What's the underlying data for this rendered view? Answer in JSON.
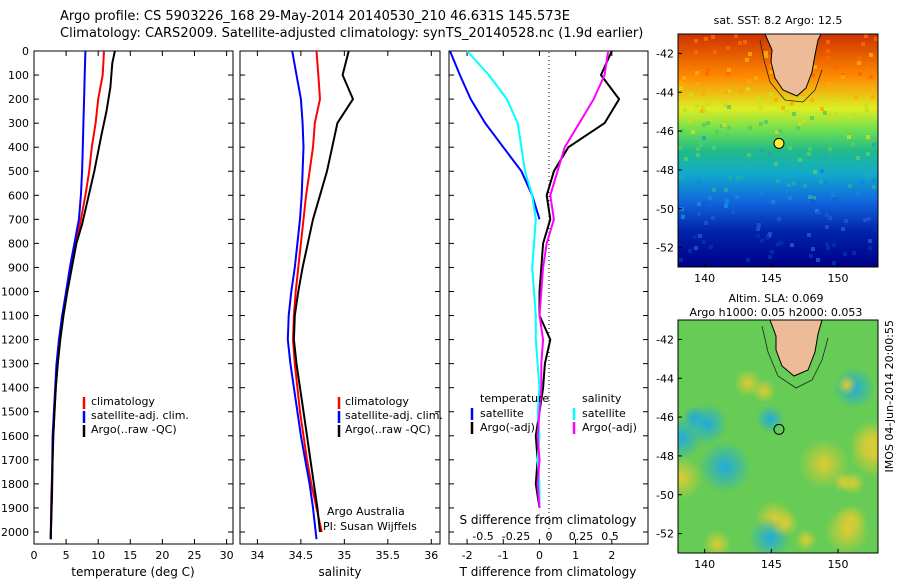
{
  "titles": {
    "line1": "Argo profile: CS 5903226_168 29-May-2014 20140530_210 46.631S 145.573E",
    "line2": "Climatology: CARS2009. Satellite-adjusted climatology: synTS_20140528.nc (1.9d earlier)"
  },
  "side_text": "IMOS 04-Jun-2014 20:00:55",
  "colors": {
    "climatology": "#ff0000",
    "satellite": "#0000ff",
    "argo": "#000000",
    "sat_diff": "#00ffff",
    "argo_diff": "#ff00ff"
  },
  "chart_data": [
    {
      "type": "line",
      "xlabel": "temperature (deg C)",
      "ylabel": "",
      "xlim": [
        0,
        31
      ],
      "ylim": [
        2050,
        0
      ],
      "xticks": [
        0,
        5,
        10,
        15,
        20,
        25,
        30
      ],
      "yticks": [
        0,
        100,
        200,
        300,
        400,
        500,
        600,
        700,
        800,
        900,
        1000,
        1100,
        1200,
        1300,
        1400,
        1500,
        1600,
        1700,
        1800,
        1900,
        2000
      ],
      "legend": [
        "climatology",
        "satellite-adj. clim.",
        "Argo(..raw -QC)"
      ],
      "series": [
        {
          "name": "climatology",
          "color": "#ff0000",
          "x": [
            10.9,
            10.7,
            10.0,
            9.6,
            9.0,
            8.6,
            8.0,
            7.3,
            6.5,
            5.8,
            5.1,
            4.4,
            3.9,
            3.6,
            3.4,
            3.2,
            3.0,
            2.9,
            2.7,
            2.6
          ],
          "y": [
            0,
            100,
            200,
            300,
            400,
            500,
            600,
            700,
            800,
            900,
            1000,
            1100,
            1200,
            1300,
            1400,
            1500,
            1600,
            1700,
            1850,
            2030
          ]
        },
        {
          "name": "satellite-adj. clim.",
          "color": "#0000ff",
          "x": [
            8.0,
            7.9,
            7.8,
            7.7,
            7.6,
            7.5,
            7.3,
            7.0,
            6.3,
            5.6,
            5.0,
            4.4,
            3.9,
            3.5,
            3.3,
            3.1,
            2.9,
            2.8,
            2.6
          ],
          "y": [
            0,
            100,
            200,
            300,
            400,
            500,
            600,
            700,
            800,
            900,
            1000,
            1100,
            1200,
            1300,
            1400,
            1500,
            1600,
            1800,
            2030
          ]
        },
        {
          "name": "Argo(..raw -QC)",
          "color": "#000000",
          "x": [
            12.6,
            12.2,
            11.9,
            11.3,
            10.5,
            9.4,
            8.1,
            7.5,
            6.6,
            5.9,
            5.2,
            4.6,
            4.1,
            3.7,
            3.4,
            3.2,
            3.0,
            2.9,
            2.8,
            2.6
          ],
          "y": [
            0,
            50,
            150,
            250,
            350,
            500,
            650,
            720,
            800,
            900,
            1000,
            1100,
            1200,
            1300,
            1400,
            1500,
            1600,
            1700,
            1850,
            2030
          ]
        }
      ]
    },
    {
      "type": "line",
      "xlabel": "salinity",
      "xlim": [
        33.8,
        36.1
      ],
      "ylim": [
        2050,
        0
      ],
      "xticks": [
        34,
        34.5,
        35,
        35.5,
        36
      ],
      "legend": [
        "climatology",
        "satellite-adj. clim.",
        "Argo(..raw -QC)"
      ],
      "annotations": [
        "Argo Australia",
        "PI: Susan Wijffels"
      ],
      "series": [
        {
          "name": "climatology",
          "color": "#ff0000",
          "x": [
            34.68,
            34.7,
            34.72,
            34.66,
            34.64,
            34.6,
            34.56,
            34.53,
            34.5,
            34.47,
            34.44,
            34.42,
            34.41,
            34.43,
            34.46,
            34.49,
            34.53,
            34.57,
            34.62,
            34.68,
            34.74
          ],
          "y": [
            0,
            100,
            200,
            300,
            400,
            500,
            600,
            700,
            800,
            900,
            1000,
            1100,
            1200,
            1300,
            1400,
            1500,
            1600,
            1700,
            1800,
            1900,
            2000
          ]
        },
        {
          "name": "satellite-adj. clim.",
          "color": "#0000ff",
          "x": [
            34.4,
            34.45,
            34.5,
            34.52,
            34.53,
            34.52,
            34.51,
            34.49,
            34.46,
            34.43,
            34.39,
            34.36,
            34.35,
            34.38,
            34.42,
            34.46,
            34.5,
            34.55,
            34.6,
            34.64,
            34.68
          ],
          "y": [
            0,
            100,
            200,
            300,
            400,
            500,
            600,
            700,
            800,
            900,
            1000,
            1100,
            1200,
            1300,
            1400,
            1500,
            1600,
            1700,
            1800,
            1900,
            2030
          ]
        },
        {
          "name": "Argo(..raw -QC)",
          "color": "#000000",
          "x": [
            35.05,
            34.98,
            35.1,
            34.92,
            34.86,
            34.8,
            34.72,
            34.64,
            34.58,
            34.52,
            34.47,
            34.43,
            34.42,
            34.45,
            34.49,
            34.53,
            34.57,
            34.61,
            34.65,
            34.69,
            34.72
          ],
          "y": [
            0,
            100,
            200,
            300,
            400,
            500,
            600,
            700,
            800,
            900,
            1000,
            1100,
            1200,
            1300,
            1400,
            1500,
            1600,
            1700,
            1800,
            1900,
            2000
          ]
        }
      ]
    },
    {
      "type": "line",
      "xlabel": "T difference from climatology",
      "xlabel_top": "S difference from climatology",
      "xlim": [
        -2.5,
        3
      ],
      "ylim": [
        2050,
        0
      ],
      "xticks": [
        -2,
        -1,
        0,
        1,
        2
      ],
      "xticks_top": [
        "-0.5",
        "-0.25",
        "0",
        "0.25",
        "0.5"
      ],
      "legend": [
        "temperature",
        "satellite",
        "Argo(-adj)",
        "salinity",
        "satellite",
        "Argo(-adj)"
      ],
      "series": [
        {
          "name": "satellite",
          "color": "#0000ff",
          "x": [
            -2.8,
            -2.2,
            -1.9,
            -1.5,
            -1.0,
            -0.5,
            -0.2,
            0.0
          ],
          "y": [
            0,
            100,
            200,
            300,
            400,
            500,
            600,
            700
          ]
        },
        {
          "name": "Argo(-adj)",
          "color": "#000000",
          "x": [
            2.0,
            1.7,
            2.2,
            1.8,
            0.8,
            0.4,
            0.2,
            0.3,
            0.1,
            0.05,
            0.0,
            0.0,
            0.3,
            0.15,
            0.1,
            0.0,
            -0.1,
            -0.05,
            -0.1,
            0.0
          ],
          "y": [
            0,
            100,
            200,
            300,
            400,
            500,
            600,
            700,
            800,
            900,
            1000,
            1100,
            1200,
            1300,
            1400,
            1500,
            1600,
            1700,
            1800,
            1900
          ]
        },
        {
          "name": "satellite",
          "color": "#00ffff",
          "x": [
            -2.0,
            -1.4,
            -0.9,
            -0.6,
            -0.5,
            -0.4,
            -0.2,
            -0.1,
            -0.15,
            -0.2,
            -0.15,
            -0.1,
            -0.1,
            -0.05,
            0.0,
            -0.05,
            0.0,
            -0.05,
            0.0,
            0.0
          ],
          "y": [
            0,
            100,
            200,
            300,
            400,
            500,
            600,
            700,
            800,
            900,
            1000,
            1100,
            1200,
            1300,
            1400,
            1500,
            1600,
            1700,
            1800,
            1900
          ]
        },
        {
          "name": "Argo(-adj)",
          "color": "#ff00ff",
          "x": [
            1.9,
            1.8,
            1.5,
            1.1,
            0.7,
            0.5,
            0.3,
            0.4,
            0.2,
            0.1,
            0.05,
            0.0,
            0.1,
            0.05,
            0.05,
            0.0,
            -0.05,
            0.0,
            -0.05,
            0.0
          ],
          "y": [
            0,
            100,
            200,
            300,
            400,
            500,
            600,
            700,
            800,
            900,
            1000,
            1100,
            1200,
            1300,
            1400,
            1500,
            1600,
            1700,
            1800,
            1900
          ]
        }
      ]
    },
    {
      "type": "heatmap",
      "title": "sat. SST: 8.2 Argo: 12.5",
      "xlim": [
        138,
        153
      ],
      "ylim": [
        -53,
        -41
      ],
      "xticks": [
        140,
        145,
        150
      ],
      "yticks": [
        -42,
        -44,
        -46,
        -48,
        -50,
        -52
      ],
      "float_position": {
        "lon": 145.573,
        "lat": -46.631
      }
    },
    {
      "type": "heatmap",
      "title": "Altim. SLA: 0.069",
      "subtitle": "Argo h1000: 0.05 h2000: 0.053",
      "xlim": [
        138,
        153
      ],
      "ylim": [
        -53,
        -41
      ],
      "xticks": [
        140,
        145,
        150
      ],
      "yticks": [
        -42,
        -44,
        -46,
        -48,
        -50,
        -52
      ],
      "float_position": {
        "lon": 145.573,
        "lat": -46.631
      }
    }
  ]
}
